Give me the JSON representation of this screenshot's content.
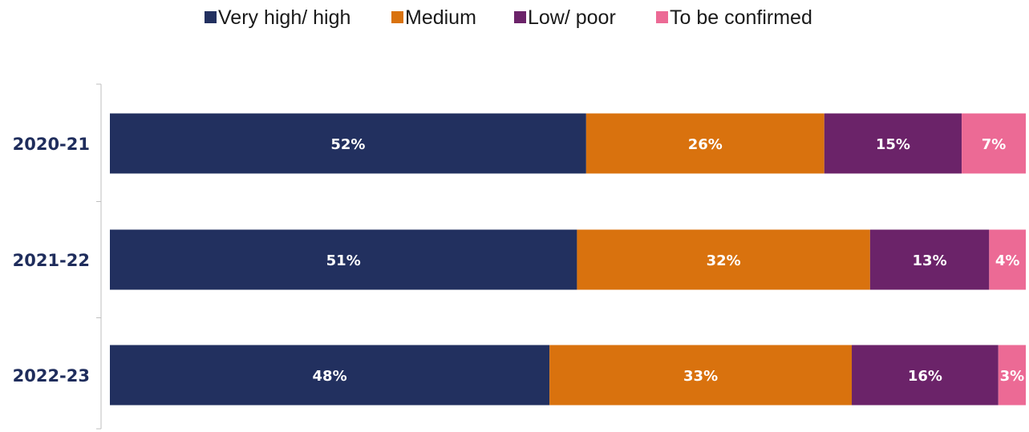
{
  "chart_data": {
    "type": "bar",
    "orientation": "horizontal",
    "stacked": true,
    "categories": [
      "2020-21",
      "2021-22",
      "2022-23"
    ],
    "series": [
      {
        "name": "Very high/ high",
        "values": [
          52,
          51,
          48
        ],
        "labels": [
          "52%",
          "51%",
          "48%"
        ],
        "color": "#22305f"
      },
      {
        "name": "Medium",
        "values": [
          26,
          32,
          33
        ],
        "labels": [
          "26%",
          "32%",
          "33%"
        ],
        "color": "#d9720e"
      },
      {
        "name": "Low/ poor",
        "values": [
          15,
          13,
          16
        ],
        "labels": [
          "15%",
          "13%",
          "16%"
        ],
        "color": "#6b2369"
      },
      {
        "name": "To be confirmed",
        "values": [
          7,
          4,
          3
        ],
        "labels": [
          "7%",
          "4%",
          "3%"
        ],
        "color": "#ec6a95"
      }
    ],
    "xlim": [
      0,
      100
    ],
    "legend_position": "top",
    "grid": false
  }
}
